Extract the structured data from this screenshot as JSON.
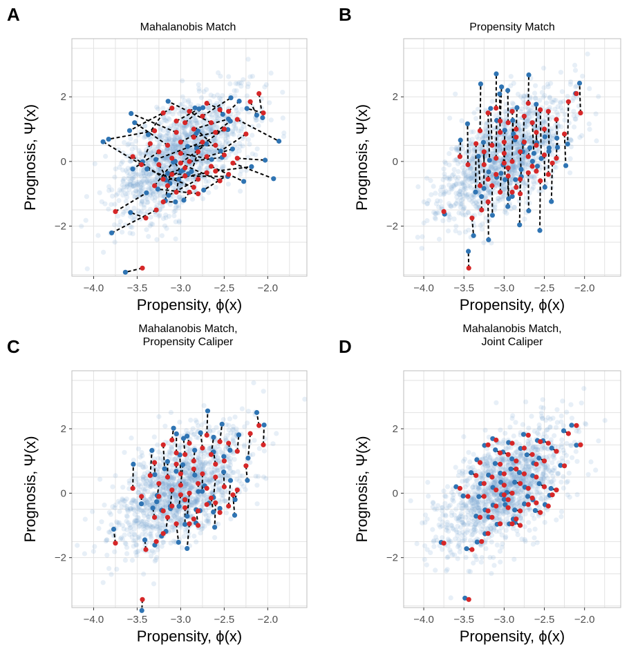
{
  "colors": {
    "background_points": "#7ba7d1",
    "control": "#2f74b3",
    "treated": "#d62728",
    "grid": "#e2e2e2",
    "panel_border": "#bdbdbd",
    "link": "#000000"
  },
  "chart_data": [
    {
      "letter": "A",
      "type": "scatter",
      "title": [
        "Mahalanobis Match"
      ],
      "xlabel": "Propensity, ϕ(x)",
      "ylabel": "Prognosis, Ψ(x)",
      "xlim": [
        -4.25,
        -1.55
      ],
      "ylim": [
        -3.55,
        3.8
      ],
      "xticks": [
        -4.0,
        -3.5,
        -3.0,
        -2.5,
        -2.0
      ],
      "xtick_labels": [
        "−4.0",
        "−3.5",
        "−3.0",
        "−2.5",
        "−2.0"
      ],
      "yticks": [
        -2,
        0,
        2
      ],
      "ytick_labels": [
        "−2",
        "0",
        "2"
      ],
      "grid": true,
      "match_rule": "mahalanobis",
      "seed": 7
    },
    {
      "letter": "B",
      "type": "scatter",
      "title": [
        "Propensity Match"
      ],
      "xlabel": "Propensity, ϕ(x)",
      "ylabel": "Prognosis, Ψ(x)",
      "xlim": [
        -4.25,
        -1.55
      ],
      "ylim": [
        -3.55,
        3.8
      ],
      "xticks": [
        -4.0,
        -3.5,
        -3.0,
        -2.5,
        -2.0
      ],
      "xtick_labels": [
        "−4.0",
        "−3.5",
        "−3.0",
        "−2.5",
        "−2.0"
      ],
      "yticks": [
        -2,
        0,
        2
      ],
      "ytick_labels": [
        "−2",
        "0",
        "2"
      ],
      "grid": true,
      "match_rule": "propensity",
      "seed": 11
    },
    {
      "letter": "C",
      "type": "scatter",
      "title": [
        "Mahalanobis Match,",
        "Propensity Caliper"
      ],
      "xlabel": "Propensity, ϕ(x)",
      "ylabel": "Prognosis, Ψ(x)",
      "xlim": [
        -4.25,
        -1.55
      ],
      "ylim": [
        -3.55,
        3.8
      ],
      "xticks": [
        -4.0,
        -3.5,
        -3.0,
        -2.5,
        -2.0
      ],
      "xtick_labels": [
        "−4.0",
        "−3.5",
        "−3.0",
        "−2.5",
        "−2.0"
      ],
      "yticks": [
        -2,
        0,
        2
      ],
      "ytick_labels": [
        "−2",
        "0",
        "2"
      ],
      "grid": true,
      "match_rule": "propensity_caliper",
      "seed": 13
    },
    {
      "letter": "D",
      "type": "scatter",
      "title": [
        "Mahalanobis Match,",
        "Joint Caliper"
      ],
      "xlabel": "Propensity, ϕ(x)",
      "ylabel": "Prognosis, Ψ(x)",
      "xlim": [
        -4.25,
        -1.55
      ],
      "ylim": [
        -3.55,
        3.8
      ],
      "xticks": [
        -4.0,
        -3.5,
        -3.0,
        -2.5,
        -2.0
      ],
      "xtick_labels": [
        "−4.0",
        "−3.5",
        "−3.0",
        "−2.5",
        "−2.0"
      ],
      "yticks": [
        -2,
        0,
        2
      ],
      "ytick_labels": [
        "−2",
        "0",
        "2"
      ],
      "grid": true,
      "match_rule": "joint_caliper",
      "seed": 17
    }
  ],
  "treated_points": [
    [
      -3.44,
      -3.3
    ],
    [
      -3.75,
      -1.55
    ],
    [
      -3.4,
      -1.75
    ],
    [
      -3.28,
      -1.5
    ],
    [
      -2.9,
      -0.95
    ],
    [
      -3.05,
      -0.95
    ],
    [
      -3.15,
      -0.75
    ],
    [
      -3.3,
      -0.75
    ],
    [
      -3.2,
      -0.55
    ],
    [
      -3.1,
      -0.4
    ],
    [
      -2.95,
      -0.45
    ],
    [
      -2.8,
      -0.55
    ],
    [
      -2.7,
      -0.35
    ],
    [
      -2.55,
      -0.6
    ],
    [
      -2.45,
      -0.4
    ],
    [
      -2.35,
      0.1
    ],
    [
      -2.5,
      0.2
    ],
    [
      -2.6,
      0.5
    ],
    [
      -2.7,
      0.15
    ],
    [
      -2.8,
      0.3
    ],
    [
      -2.9,
      0.0
    ],
    [
      -3.0,
      0.25
    ],
    [
      -3.15,
      0.5
    ],
    [
      -3.25,
      0.3
    ],
    [
      -3.35,
      0.55
    ],
    [
      -3.55,
      0.15
    ],
    [
      -3.45,
      -0.1
    ],
    [
      -3.05,
      0.9
    ],
    [
      -2.95,
      1.2
    ],
    [
      -2.85,
      1.0
    ],
    [
      -2.75,
      1.4
    ],
    [
      -2.65,
      1.2
    ],
    [
      -2.55,
      1.6
    ],
    [
      -2.45,
      1.55
    ],
    [
      -2.35,
      1.3
    ],
    [
      -2.2,
      1.85
    ],
    [
      -2.1,
      2.1
    ],
    [
      -2.05,
      1.5
    ],
    [
      -2.25,
      0.85
    ],
    [
      -2.6,
      0.9
    ],
    [
      -3.1,
      1.65
    ],
    [
      -3.2,
      1.5
    ],
    [
      -2.9,
      1.55
    ],
    [
      -2.75,
      0.6
    ],
    [
      -2.85,
      0.75
    ],
    [
      -3.0,
      0.6
    ],
    [
      -3.1,
      0.1
    ],
    [
      -2.65,
      -0.15
    ],
    [
      -2.95,
      -0.2
    ],
    [
      -3.2,
      -1.25
    ],
    [
      -2.8,
      -1.0
    ],
    [
      -3.0,
      -0.05
    ],
    [
      -2.5,
      1.0
    ],
    [
      -2.7,
      1.8
    ],
    [
      -3.25,
      -0.1
    ],
    [
      -2.6,
      -0.3
    ],
    [
      -3.3,
      0.95
    ],
    [
      -2.4,
      -0.05
    ],
    [
      -2.85,
      -0.8
    ],
    [
      -3.05,
      1.25
    ]
  ]
}
